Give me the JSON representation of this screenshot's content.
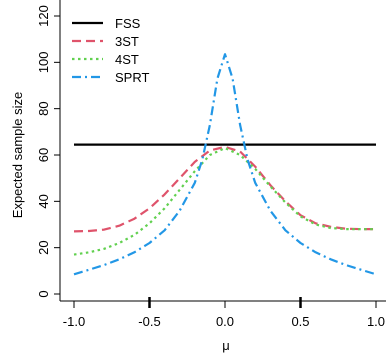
{
  "chart_data": {
    "type": "line",
    "title": "",
    "xlabel": "μ",
    "ylabel": "Expected sample size",
    "xlim": [
      -1.0,
      1.0
    ],
    "ylim": [
      0,
      120
    ],
    "xticks": [
      -1.0,
      -0.5,
      0.0,
      0.5,
      1.0
    ],
    "xtick_labels": [
      "-1.0",
      "-0.5",
      "0.0",
      "0.5",
      "1.0"
    ],
    "yticks": [
      0,
      20,
      40,
      60,
      80,
      100,
      120
    ],
    "ytick_labels": [
      "0",
      "20",
      "40",
      "60",
      "80",
      "100",
      "120"
    ],
    "grid": false,
    "legend_position": "top-left",
    "series": [
      {
        "name": "FSS",
        "color": "#000000",
        "dash": "solid",
        "x": [
          -1.0,
          1.0
        ],
        "y": [
          64.5,
          64.5
        ]
      },
      {
        "name": "3ST",
        "color": "#df536b",
        "dash": "dashed",
        "x": [
          -1.0,
          -0.9,
          -0.8,
          -0.7,
          -0.6,
          -0.5,
          -0.4,
          -0.3,
          -0.2,
          -0.1,
          0.0,
          0.1,
          0.2,
          0.3,
          0.4,
          0.5,
          0.6,
          0.7,
          0.8,
          0.9,
          1.0
        ],
        "y": [
          27,
          27.2,
          27.8,
          29.5,
          32.5,
          37,
          43,
          50,
          57,
          62,
          63.5,
          61.5,
          55,
          47,
          40,
          34,
          30.5,
          29,
          28.2,
          28,
          28
        ]
      },
      {
        "name": "4ST",
        "color": "#61d04f",
        "dash": "dotted",
        "x": [
          -1.0,
          -0.9,
          -0.8,
          -0.7,
          -0.6,
          -0.5,
          -0.4,
          -0.3,
          -0.2,
          -0.1,
          0.0,
          0.1,
          0.2,
          0.3,
          0.4,
          0.5,
          0.6,
          0.7,
          0.8,
          0.9,
          1.0
        ],
        "y": [
          17,
          18,
          19.5,
          22,
          25.5,
          30.5,
          37,
          45,
          53,
          60,
          63,
          60,
          54,
          46.5,
          39.5,
          33.5,
          30,
          28.5,
          28,
          28,
          28
        ]
      },
      {
        "name": "SPRT",
        "color": "#2297e6",
        "dash": "dashdot",
        "x": [
          -1.0,
          -0.9,
          -0.8,
          -0.7,
          -0.6,
          -0.5,
          -0.4,
          -0.3,
          -0.2,
          -0.15,
          -0.1,
          -0.05,
          0.0,
          0.05,
          0.1,
          0.15,
          0.2,
          0.3,
          0.4,
          0.5,
          0.6,
          0.7,
          0.8,
          0.9,
          1.0
        ],
        "y": [
          8.5,
          10.5,
          12.5,
          15,
          18,
          22,
          27.5,
          36,
          48,
          58,
          73,
          93,
          103.5,
          93,
          73,
          58,
          48,
          36,
          27.5,
          22,
          18,
          15,
          12.5,
          10.5,
          8.5
        ]
      }
    ]
  }
}
